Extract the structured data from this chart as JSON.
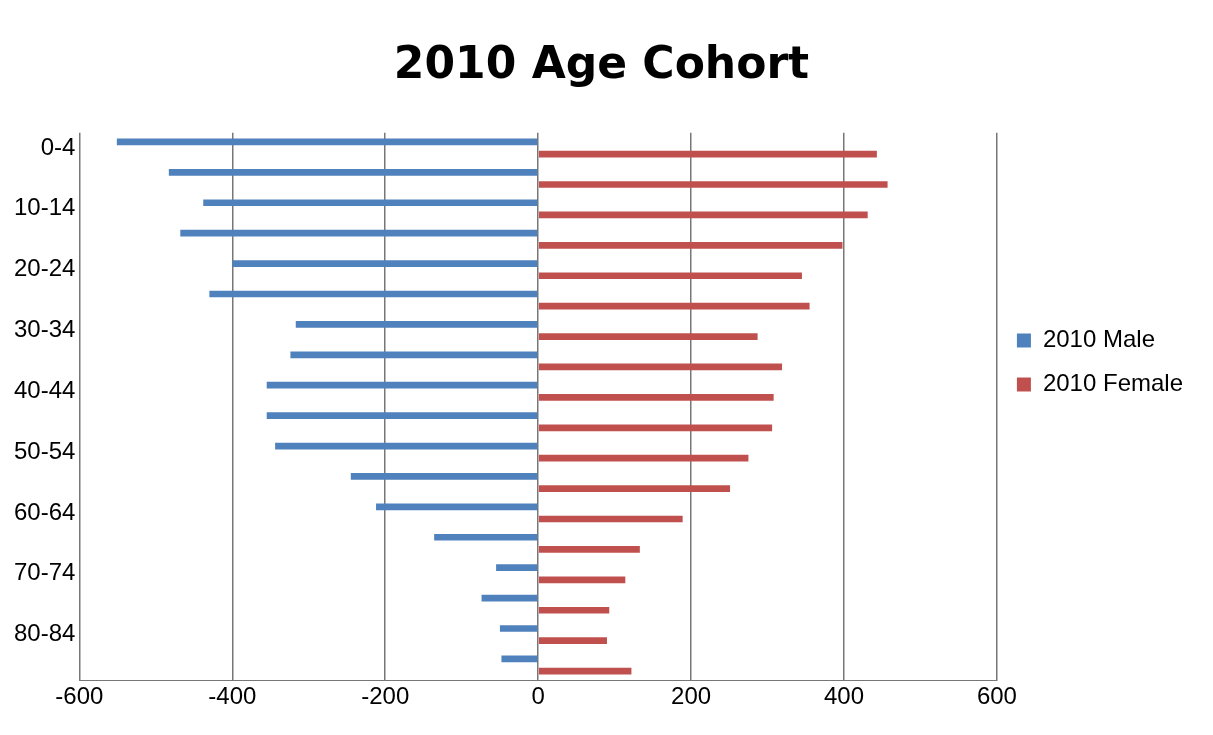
{
  "chart_data": {
    "type": "bar",
    "orientation": "horizontal",
    "title": "2010 Age Cohort",
    "categories": [
      "0-4",
      null,
      "10-14",
      null,
      "20-24",
      null,
      "30-34",
      null,
      "40-44",
      null,
      "50-54",
      null,
      "60-64",
      null,
      "70-74",
      null,
      "80-84",
      null
    ],
    "series": [
      {
        "name": "2010 Male",
        "color": "#4f81bd",
        "values": [
          -551,
          -483,
          -438,
          -468,
          -400,
          -430,
          -317,
          -324,
          -355,
          -355,
          -344,
          -245,
          -212,
          -136,
          -55,
          -74,
          -50,
          -48
        ]
      },
      {
        "name": "2010 Female",
        "color": "#c0504d",
        "values": [
          443,
          457,
          431,
          398,
          345,
          355,
          287,
          319,
          308,
          306,
          275,
          251,
          189,
          133,
          114,
          93,
          90,
          122
        ]
      }
    ],
    "xlim": [
      -600,
      600
    ],
    "xticks": [
      -600,
      -400,
      -200,
      0,
      200,
      400,
      600
    ],
    "grid": "x",
    "legend": "right"
  }
}
